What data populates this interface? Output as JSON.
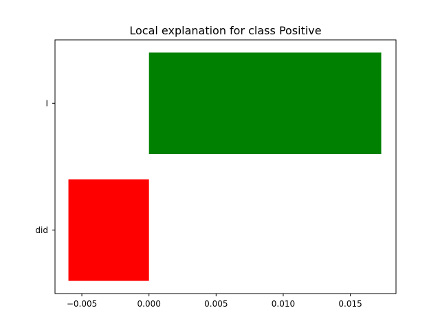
{
  "chart_data": {
    "type": "bar",
    "orientation": "horizontal",
    "title": "Local explanation for class Positive",
    "xlabel": "",
    "ylabel": "",
    "categories": [
      "I",
      "did"
    ],
    "values": [
      0.0173,
      -0.006
    ],
    "bar_colors": [
      "#008000",
      "#ff0000"
    ],
    "xlim": [
      -0.007,
      0.0184
    ],
    "x_ticks": [
      -0.005,
      0.0,
      0.005,
      0.01,
      0.015
    ],
    "x_tick_labels": [
      "−0.005",
      "0.000",
      "0.005",
      "0.010",
      "0.015"
    ],
    "grid": false,
    "legend": "none"
  }
}
